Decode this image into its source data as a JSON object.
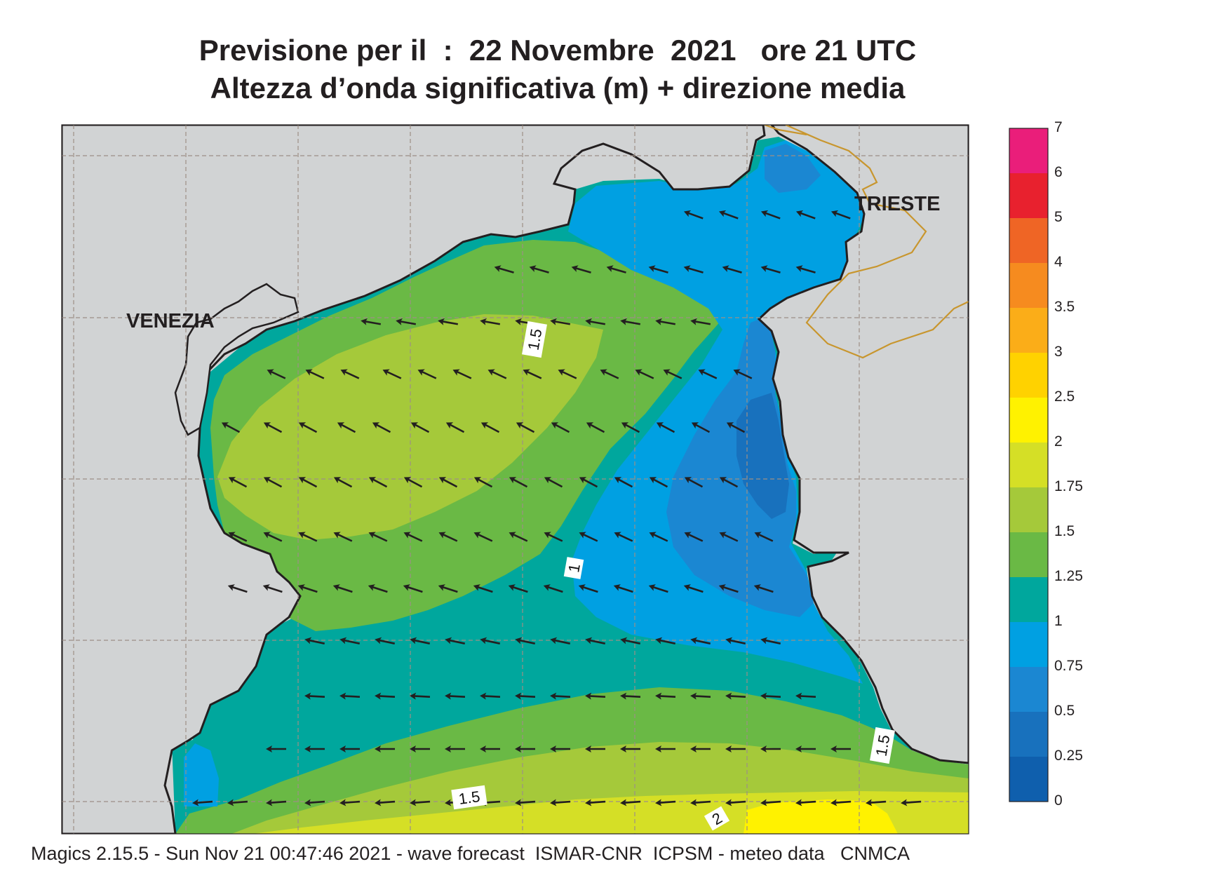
{
  "title": {
    "line1": "Previsione per il  :  22 Novembre  2021   ore 21 UTC",
    "line2": "Altezza d’onda significativa (m) + direzione media"
  },
  "cities": [
    "VENEZIA",
    "TRIESTE"
  ],
  "contour_labels": [
    "1.5",
    "1",
    "1.5",
    "1.5",
    "2"
  ],
  "colorbar": {
    "labels": [
      "7",
      "6",
      "5",
      "4",
      "3.5",
      "3",
      "2.5",
      "2",
      "1.75",
      "1.5",
      "1.25",
      "1",
      "0.75",
      "0.5",
      "0.25",
      "0"
    ],
    "colors": [
      "#ea1e7a",
      "#e8212e",
      "#ef6525",
      "#f68b1f",
      "#fbad18",
      "#ffd200",
      "#fff200",
      "#d5df26",
      "#a5c93a",
      "#6ab945",
      "#00a79d",
      "#00a0e2",
      "#1b87d2",
      "#1871bd",
      "#0f5fad"
    ]
  },
  "footer": "Magics 2.15.5 - Sun Nov 21 00:47:46 2021 - wave forecast  ISMAR-CNR  ICPSM - meteo data   CNMCA",
  "palette": {
    "land": "#d1d3d4",
    "coast": "#231f20",
    "border": "#c8962e",
    "grid": "#9d8f86",
    "arrow": "#231f20"
  }
}
